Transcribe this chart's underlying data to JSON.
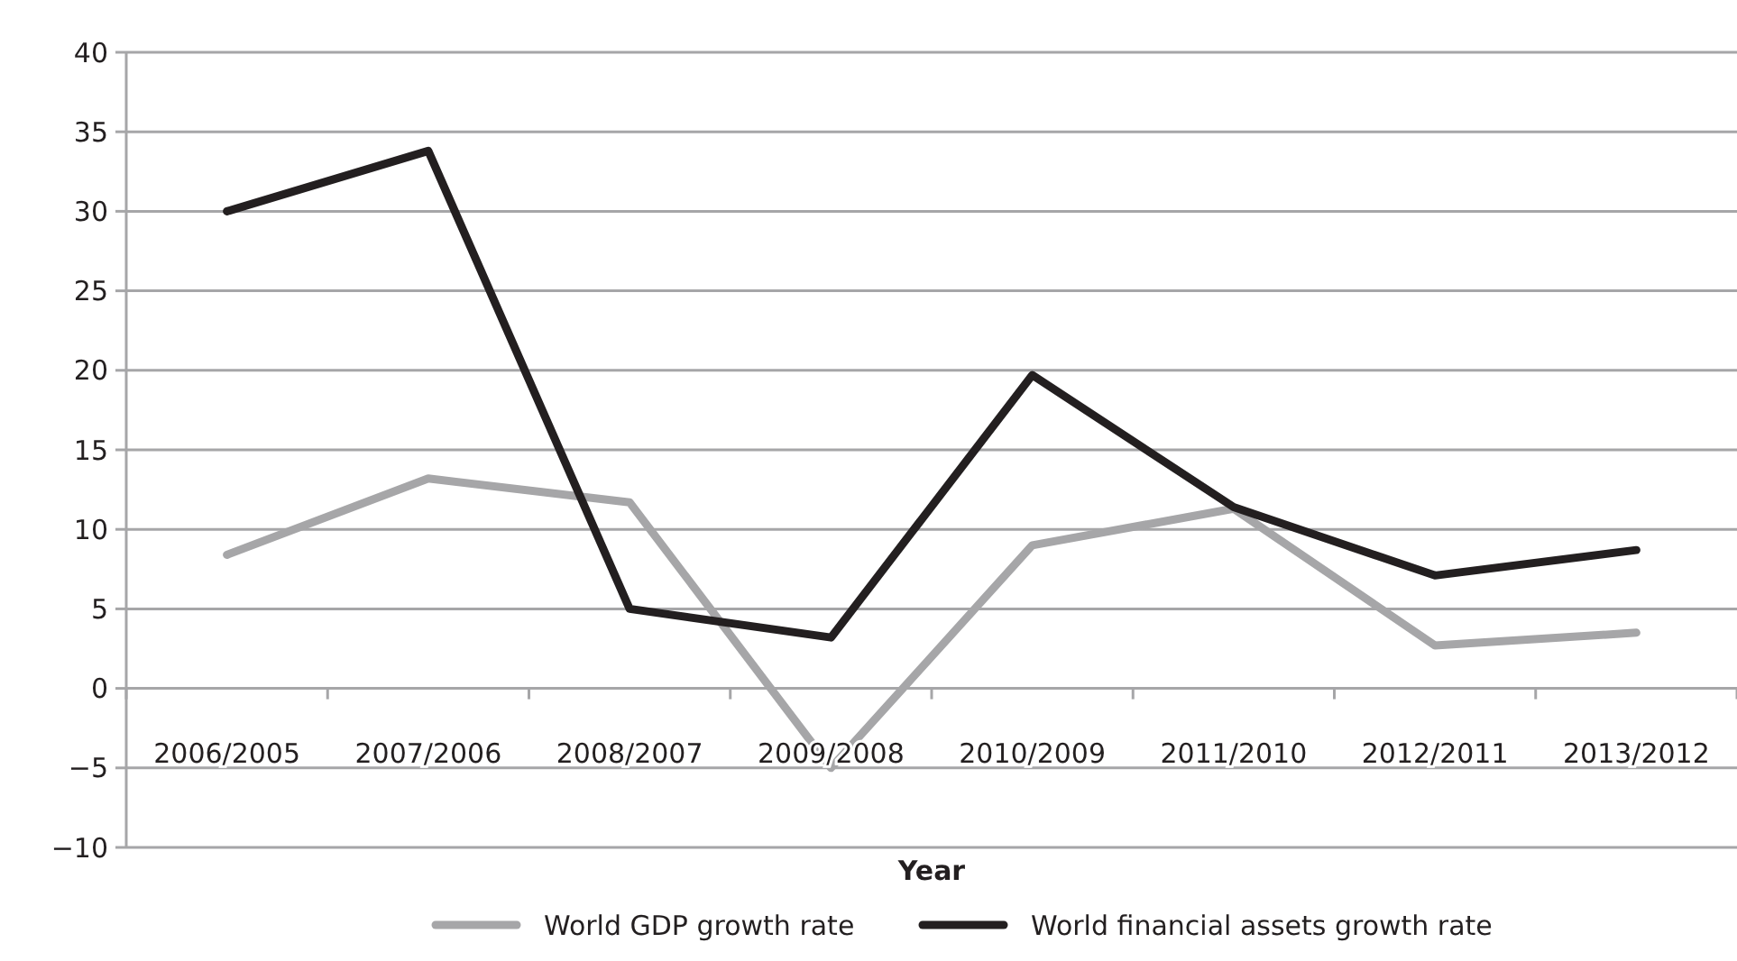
{
  "chart_data": {
    "type": "line",
    "xlabel": "Year",
    "categories": [
      "2006/2005",
      "2007/2006",
      "2008/2007",
      "2009/2008",
      "2010/2009",
      "2011/2010",
      "2012/2011",
      "2013/2012"
    ],
    "series": [
      {
        "name": "World GDP growth rate",
        "color": "#a6a6a8",
        "values": [
          8.4,
          13.2,
          11.7,
          -5,
          9,
          11.3,
          2.7,
          3.5
        ]
      },
      {
        "name": "World financial assets growth rate",
        "color": "#231f20",
        "values": [
          30,
          33.8,
          5,
          3.2,
          19.7,
          11.4,
          7.1,
          8.7
        ]
      }
    ],
    "ylim": [
      -10,
      40
    ],
    "yticks": [
      {
        "value": -10,
        "label": "−10"
      },
      {
        "value": -5,
        "label": "−5"
      },
      0,
      5,
      10,
      15,
      20,
      25,
      30,
      35,
      40
    ],
    "grid": "y",
    "legend": "bottom",
    "marker": "none",
    "line_style": "solid"
  }
}
